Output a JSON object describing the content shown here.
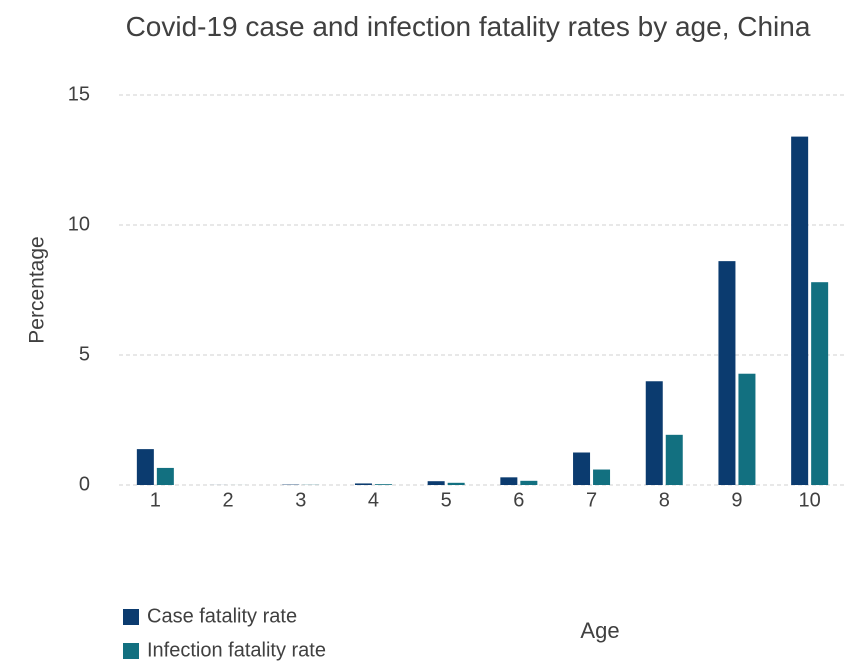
{
  "chart_data": {
    "type": "bar",
    "title": "Covid-19 case and infection fatality rates by age, China",
    "x_label": "Age",
    "y_label": "Percentage",
    "categories": [
      "1",
      "2",
      "3",
      "4",
      "5",
      "6",
      "7",
      "8",
      "9",
      "10"
    ],
    "series": [
      {
        "name": "Case fatality rate",
        "color": "#0b3b6f",
        "values": [
          1.38,
          0.0026,
          0.0148,
          0.06,
          0.146,
          0.295,
          1.25,
          3.99,
          8.61,
          13.4
        ]
      },
      {
        "name": "Infection fatality rate",
        "color": "#127080",
        "values": [
          0.657,
          0.00161,
          0.00695,
          0.0309,
          0.0844,
          0.161,
          0.595,
          1.93,
          4.28,
          7.8
        ]
      }
    ],
    "ylim": [
      0,
      15
    ],
    "yticks": [
      0,
      5,
      10,
      15
    ],
    "grid": true,
    "legend_position": "bottom-left"
  }
}
